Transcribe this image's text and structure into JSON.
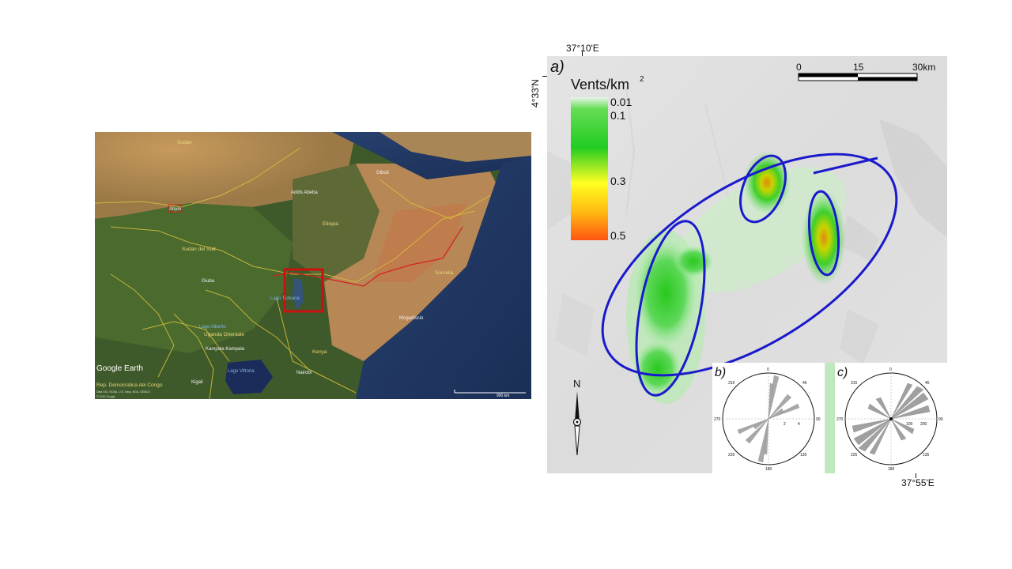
{
  "coordinates": {
    "lat_top": "4°33'N",
    "lon_top": "37°10'E",
    "lon_bottom": "37°55'E"
  },
  "satellite_map": {
    "branding": "Google Earth",
    "countries": [
      "Sudan",
      "Etiopia",
      "Sudan del Sud",
      "Somalia",
      "Uganda",
      "Kenya",
      "Rep. Democratica del Congo"
    ],
    "regions": [
      "Uganda Orientale"
    ],
    "cities": [
      "Gibuti",
      "Addis Abeba",
      "Giuba",
      "Kampala Kampala",
      "Mogadiscio",
      "Kigali",
      "Abyei",
      "Nairobi"
    ],
    "lakes": [
      "Lago Turkana",
      "Lago Alberto",
      "Lago Vittoria"
    ],
    "scale": "900 km",
    "attribution": "Data SIO, NOAA, U.S. Navy, NGA, GEBCO",
    "attribution_2": "© 2019 Google",
    "highlight_color": "#cc1010"
  },
  "panel_a": {
    "panel_label": "a)",
    "legend_title": "Vents/km",
    "legend_title_sup": "2",
    "legend_ticks": [
      "0.01",
      "0.1",
      "0.3",
      "0.5"
    ],
    "scale_labels": [
      "0",
      "15",
      "30km"
    ],
    "north_label": "N",
    "ellipse_color": "#1a1acc"
  },
  "panel_b": {
    "panel_label": "b)",
    "azimuth_labels": [
      "0",
      "45",
      "90",
      "135",
      "180",
      "225",
      "270",
      "315"
    ],
    "radial_labels": [
      "2",
      "4"
    ]
  },
  "panel_c": {
    "panel_label": "c)",
    "azimuth_labels": [
      "0",
      "45",
      "90",
      "135",
      "180",
      "225",
      "270",
      "315"
    ],
    "radial_labels": [
      "100",
      "200"
    ]
  }
}
